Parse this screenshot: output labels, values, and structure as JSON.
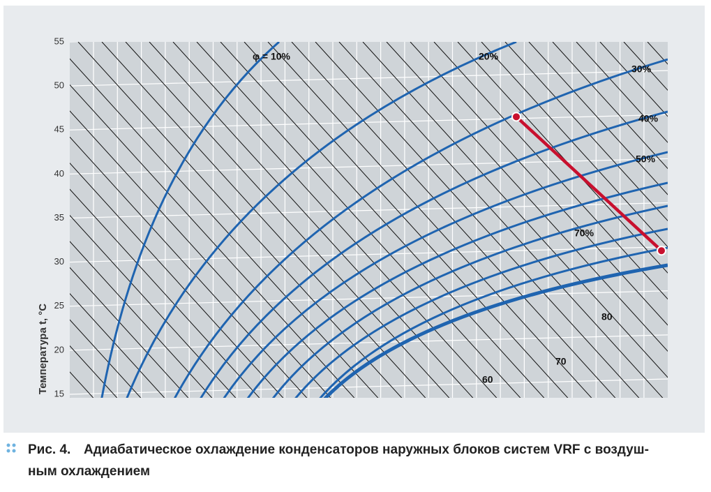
{
  "chart_data": {
    "type": "line",
    "y_label": "Температура t, °C",
    "ylim": [
      15,
      55
    ],
    "yticks": [
      15,
      20,
      25,
      30,
      35,
      40,
      45,
      50,
      55
    ],
    "grid": true,
    "humidity_labels": [
      "φ = 10%",
      "20%",
      "30%",
      "40%",
      "50%",
      "70%"
    ],
    "line_labels": [
      "60",
      "70",
      "80"
    ],
    "series": [
      {
        "name": "process",
        "color": "#c8102e",
        "values": [
          46.5,
          31.3
        ]
      }
    ],
    "caption_label": "Рис. 4.",
    "caption": [
      "Адиабатическое охлаждение конденсаторов наружных блоков систем VRF с воздуш-",
      "ным охлаждением"
    ]
  }
}
